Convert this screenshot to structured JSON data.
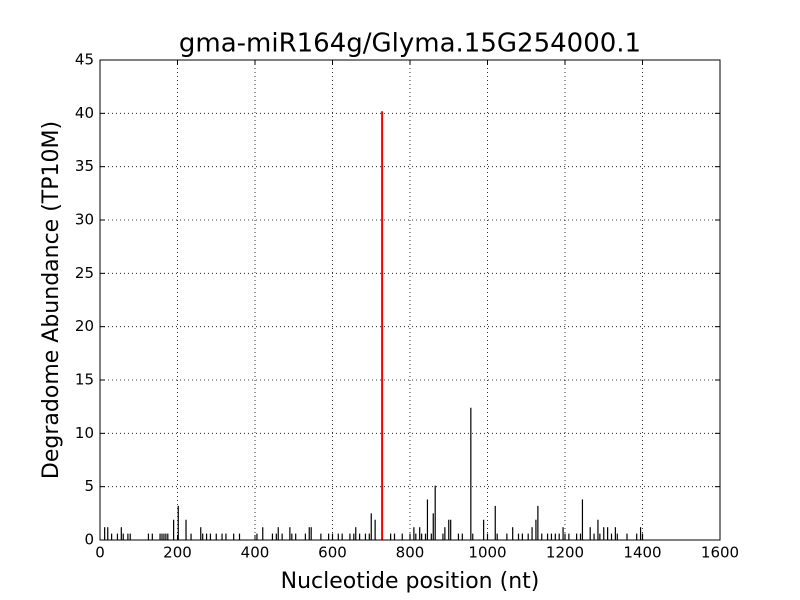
{
  "chart_data": {
    "type": "stem",
    "title": "gma-miR164g/Glyma.15G254000.1",
    "x_label": "Nucleotide position (nt)",
    "y_label": "Degradome Abundance (TP10M)",
    "xlim": [
      0,
      1600
    ],
    "ylim": [
      0,
      45
    ],
    "xticks": [
      0,
      200,
      400,
      600,
      800,
      1000,
      1200,
      1400,
      1600
    ],
    "yticks": [
      0,
      5,
      10,
      15,
      20,
      25,
      30,
      35,
      40,
      45
    ],
    "grid": true,
    "series": [
      {
        "color": "#000000",
        "x": [
          12,
          20,
          30,
          45,
          55,
          60,
          72,
          78,
          125,
          135,
          155,
          160,
          165,
          170,
          175,
          190,
          202,
          222,
          235,
          260,
          265,
          275,
          285,
          300,
          315,
          325,
          345,
          360,
          405,
          420,
          445,
          455,
          460,
          470,
          490,
          495,
          505,
          530,
          540,
          545,
          570,
          590,
          600,
          615,
          625,
          645,
          655,
          660,
          670,
          685,
          695,
          700,
          710,
          750,
          760,
          780,
          800,
          810,
          815,
          825,
          830,
          840,
          845,
          855,
          860,
          865,
          885,
          890,
          900,
          905,
          925,
          935,
          957,
          962,
          990,
          1000,
          1020,
          1025,
          1050,
          1065,
          1080,
          1090,
          1105,
          1115,
          1125,
          1130,
          1140,
          1155,
          1165,
          1175,
          1185,
          1195,
          1200,
          1210,
          1230,
          1240,
          1245,
          1265,
          1275,
          1285,
          1290,
          1300,
          1310,
          1320,
          1330,
          1335,
          1360,
          1385,
          1395,
          1400
        ],
        "values": [
          1.2,
          1.2,
          0.6,
          0.6,
          1.2,
          0.6,
          0.6,
          0.6,
          0.6,
          0.6,
          0.6,
          0.6,
          0.6,
          0.6,
          0.6,
          1.9,
          3.2,
          1.9,
          0.6,
          1.2,
          0.6,
          0.6,
          0.6,
          0.6,
          0.6,
          0.6,
          0.6,
          0.6,
          0.6,
          1.2,
          0.6,
          0.6,
          1.2,
          0.6,
          1.2,
          0.6,
          0.6,
          0.6,
          1.2,
          1.2,
          0.6,
          0.6,
          0.6,
          0.6,
          0.6,
          0.6,
          0.6,
          1.2,
          0.6,
          0.6,
          0.6,
          2.5,
          1.9,
          0.6,
          0.6,
          0.6,
          0.6,
          1.2,
          0.6,
          1.2,
          0.6,
          0.6,
          3.8,
          0.6,
          2.5,
          5.1,
          0.6,
          1.2,
          1.9,
          1.9,
          0.6,
          0.6,
          12.4,
          0.6,
          1.9,
          0.6,
          3.2,
          0.6,
          0.6,
          1.2,
          0.6,
          0.6,
          0.6,
          1.2,
          1.9,
          3.2,
          0.6,
          0.6,
          0.6,
          0.6,
          0.6,
          1.2,
          0.6,
          0.6,
          0.6,
          0.6,
          3.8,
          1.2,
          0.6,
          1.9,
          0.6,
          1.2,
          1.2,
          0.6,
          1.2,
          0.6,
          0.6,
          0.6,
          1.2,
          0.6
        ]
      },
      {
        "color": "#ff0000",
        "x": [
          728
        ],
        "values": [
          40.2
        ]
      }
    ]
  }
}
